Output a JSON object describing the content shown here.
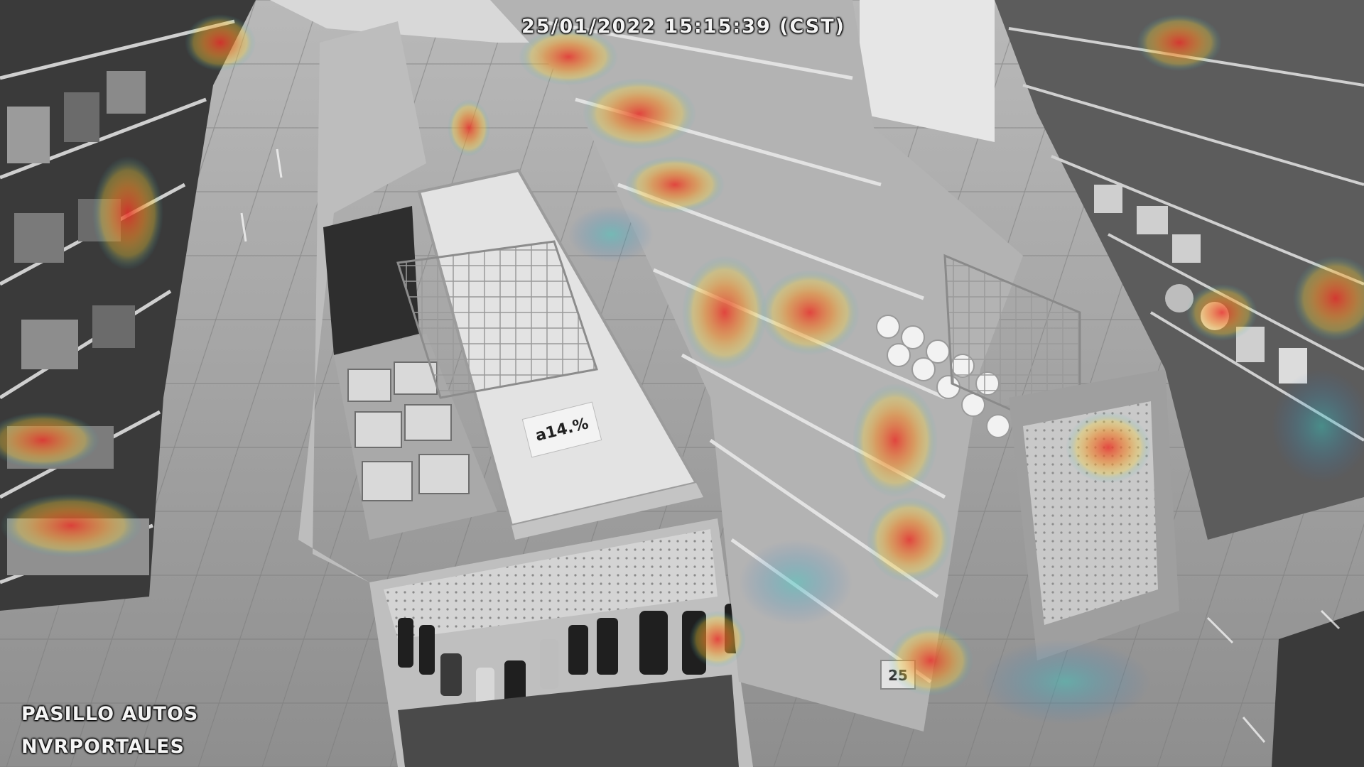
{
  "overlay": {
    "timestamp": "25/01/2022 15:15:39 (CST)",
    "camera_label": "PASILLO AUTOS",
    "recorder_label": "NVRPORTALES"
  },
  "scene": {
    "price_tag_text": "a14.%",
    "tag_25_text": "25",
    "palette": {
      "floor": "#9a9a9a",
      "shelf": "#c9c9c9",
      "dark": "#2a2a2a",
      "heat_hot": "#e8322a",
      "heat_warm": "#f4d03a",
      "heat_cool": "#2bb3c9"
    }
  }
}
